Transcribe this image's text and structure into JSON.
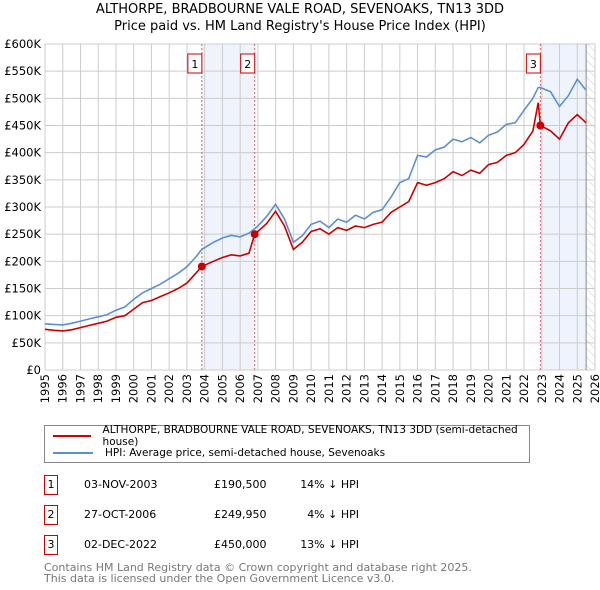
{
  "title_line1": "ALTHORPE, BRADBOURNE VALE ROAD, SEVENOAKS, TN13 3DD",
  "title_line2": "Price paid vs. HM Land Registry's House Price Index (HPI)",
  "chart_data": {
    "type": "line",
    "title": "ALTHORPE, BRADBOURNE VALE ROAD, SEVENOAKS, TN13 3DD - Price paid vs. HM Land Registry's House Price Index (HPI)",
    "xlim": [
      1995,
      2026
    ],
    "ylim": [
      0,
      600000
    ],
    "x_ticks": [
      "1995",
      "1996",
      "1997",
      "1998",
      "1999",
      "2000",
      "2001",
      "2002",
      "2003",
      "2004",
      "2005",
      "2006",
      "2007",
      "2008",
      "2009",
      "2010",
      "2011",
      "2012",
      "2013",
      "2014",
      "2015",
      "2016",
      "2017",
      "2018",
      "2019",
      "2020",
      "2021",
      "2022",
      "2023",
      "2024",
      "2025",
      "2026"
    ],
    "y_ticks": [
      {
        "v": 0,
        "label": "£0"
      },
      {
        "v": 50000,
        "label": "£50K"
      },
      {
        "v": 100000,
        "label": "£100K"
      },
      {
        "v": 150000,
        "label": "£150K"
      },
      {
        "v": 200000,
        "label": "£200K"
      },
      {
        "v": 250000,
        "label": "£250K"
      },
      {
        "v": 300000,
        "label": "£300K"
      },
      {
        "v": 350000,
        "label": "£350K"
      },
      {
        "v": 400000,
        "label": "£400K"
      },
      {
        "v": 450000,
        "label": "£450K"
      },
      {
        "v": 500000,
        "label": "£500K"
      },
      {
        "v": 550000,
        "label": "£550K"
      },
      {
        "v": 600000,
        "label": "£600K"
      }
    ],
    "grid": true,
    "colors": {
      "property": "#cc0000",
      "hpi": "#5b8fd0",
      "shade": "#eef3fc"
    },
    "x": [
      1995,
      1995.5,
      1996,
      1996.5,
      1997,
      1997.5,
      1998,
      1998.5,
      1999,
      1999.5,
      2000,
      2000.5,
      2001,
      2001.5,
      2002,
      2002.5,
      2003,
      2003.5,
      2003.84,
      2004.5,
      2005,
      2005.5,
      2006,
      2006.5,
      2006.82,
      2007,
      2007.5,
      2008,
      2008.5,
      2009,
      2009.5,
      2010,
      2010.5,
      2011,
      2011.5,
      2012,
      2012.5,
      2013,
      2013.5,
      2014,
      2014.5,
      2015,
      2015.5,
      2016,
      2016.5,
      2017,
      2017.5,
      2018,
      2018.5,
      2019,
      2019.5,
      2020,
      2020.5,
      2021,
      2021.5,
      2022,
      2022.5,
      2022.8,
      2022.92,
      2023.5,
      2024,
      2024.5,
      2025,
      2025.5
    ],
    "series": [
      {
        "name": "ALTHORPE, BRADBOURNE VALE ROAD, SEVENOAKS, TN13 3DD (semi-detached house)",
        "values": [
          75000,
          73000,
          72000,
          74000,
          78000,
          82000,
          86000,
          90000,
          97000,
          100000,
          112000,
          124000,
          128000,
          135000,
          142000,
          150000,
          160000,
          178000,
          190500,
          200000,
          207000,
          212000,
          210000,
          215000,
          249950,
          255000,
          270000,
          292000,
          265000,
          222000,
          235000,
          255000,
          260000,
          250000,
          262000,
          257000,
          265000,
          262000,
          268000,
          272000,
          290000,
          300000,
          310000,
          345000,
          340000,
          345000,
          352000,
          365000,
          358000,
          368000,
          362000,
          378000,
          382000,
          395000,
          400000,
          415000,
          440000,
          492000,
          450000,
          440000,
          425000,
          455000,
          470000,
          455000
        ]
      },
      {
        "name": "HPI: Average price, semi-detached house, Sevenoaks",
        "values": [
          85000,
          84000,
          83000,
          86000,
          90000,
          94000,
          98000,
          102000,
          110000,
          116000,
          130000,
          142000,
          150000,
          158000,
          168000,
          178000,
          190000,
          208000,
          222000,
          235000,
          243000,
          248000,
          245000,
          252000,
          260000,
          265000,
          283000,
          305000,
          278000,
          235000,
          247000,
          268000,
          274000,
          262000,
          278000,
          272000,
          285000,
          278000,
          290000,
          295000,
          318000,
          345000,
          352000,
          395000,
          392000,
          405000,
          410000,
          425000,
          420000,
          428000,
          418000,
          432000,
          438000,
          452000,
          455000,
          478000,
          500000,
          520000,
          520000,
          512000,
          485000,
          505000,
          535000,
          515000
        ]
      }
    ],
    "sales": [
      {
        "n": "1",
        "x": 2003.84,
        "price": 190500
      },
      {
        "n": "2",
        "x": 2006.82,
        "price": 249950
      },
      {
        "n": "3",
        "x": 2022.92,
        "price": 450000
      }
    ]
  },
  "legend": {
    "property": "ALTHORPE, BRADBOURNE VALE ROAD, SEVENOAKS, TN13 3DD (semi-detached house)",
    "hpi": "HPI: Average price, semi-detached house, Sevenoaks"
  },
  "sales_table": [
    {
      "n": "1",
      "date": "03-NOV-2003",
      "price": "£190,500",
      "hpi": "14% ↓ HPI"
    },
    {
      "n": "2",
      "date": "27-OCT-2006",
      "price": "£249,950",
      "hpi": "4% ↓ HPI"
    },
    {
      "n": "3",
      "date": "02-DEC-2022",
      "price": "£450,000",
      "hpi": "13% ↓ HPI"
    }
  ],
  "footer": {
    "line1": "Contains HM Land Registry data © Crown copyright and database right 2025.",
    "line2": "This data is licensed under the Open Government Licence v3.0."
  }
}
